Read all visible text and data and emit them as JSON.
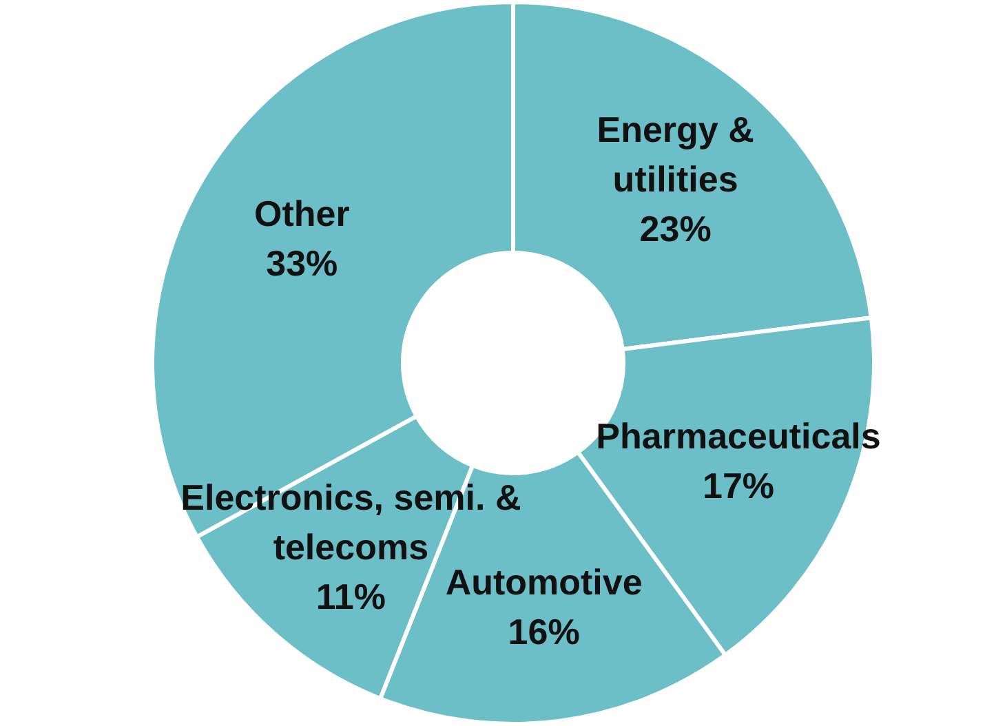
{
  "chart_data": {
    "type": "donut",
    "categories": [
      "Energy &\nutilities",
      "Pharmaceuticals",
      "Automotive",
      "Electronics, semi. &\ntelecoms",
      "Other"
    ],
    "values": [
      23,
      17,
      16,
      11,
      33
    ],
    "value_labels": [
      "23%",
      "17%",
      "16%",
      "11%",
      "33%"
    ],
    "colors": [
      "#6cbfc6",
      "#6cbfc6",
      "#6cbfc6",
      "#6cbfc6",
      "#6cbfc6"
    ]
  }
}
